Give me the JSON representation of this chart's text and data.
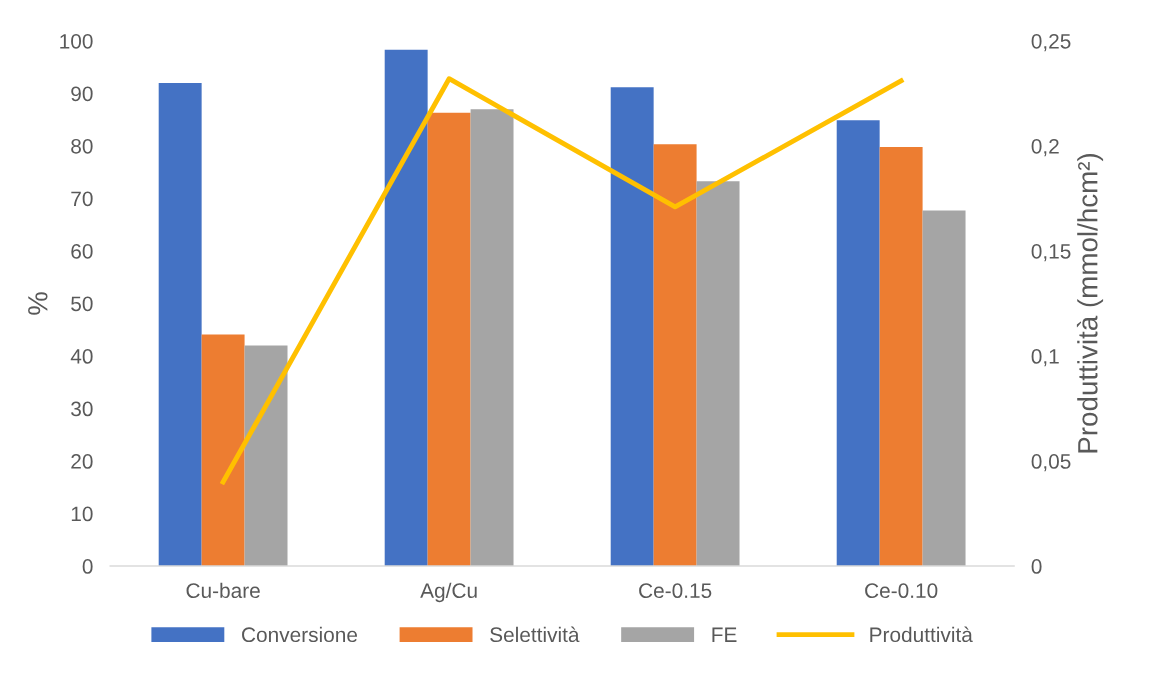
{
  "chart_data": {
    "type": "bar",
    "categories": [
      "Cu-bare",
      "Ag/Cu",
      "Ce-0.15",
      "Ce-0.10"
    ],
    "series": [
      {
        "name": "Conversione",
        "color": "#4472c4",
        "values": [
          92.0,
          98.3,
          91.2,
          84.9
        ]
      },
      {
        "name": "Selettività",
        "color": "#ed7d31",
        "values": [
          44.1,
          86.3,
          80.3,
          79.8
        ]
      },
      {
        "name": "FE",
        "color": "#a5a5a5",
        "values": [
          42.0,
          87.0,
          73.3,
          67.7
        ]
      },
      {
        "name": "Produttività",
        "type": "line",
        "axis": "y2",
        "color": "#ffc000",
        "values": [
          0.04,
          0.232,
          0.171,
          0.231
        ]
      }
    ],
    "ylabel": "%",
    "y2label": "Produttività (mmol/hcm²)",
    "ylim": [
      0,
      100
    ],
    "yticks": [
      0,
      10,
      20,
      30,
      40,
      50,
      60,
      70,
      80,
      90,
      100
    ],
    "y2lim": [
      0,
      0.25
    ],
    "y2ticks": [
      {
        "value": 0,
        "label": "0"
      },
      {
        "value": 0.05,
        "label": "0,05"
      },
      {
        "value": 0.1,
        "label": "0,1"
      },
      {
        "value": 0.15,
        "label": "0,15"
      },
      {
        "value": 0.2,
        "label": "0,2"
      },
      {
        "value": 0.25,
        "label": "0,25"
      }
    ],
    "legend": "bottom",
    "marker": "none",
    "line_style": "solid"
  }
}
